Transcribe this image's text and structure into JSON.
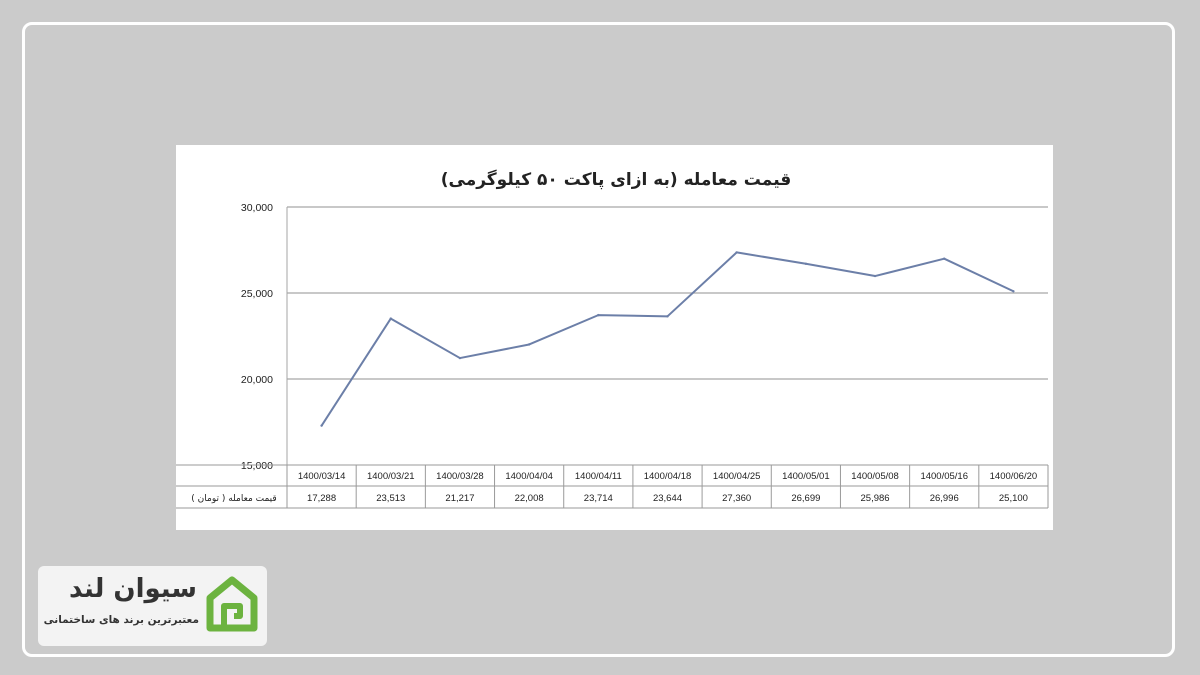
{
  "chart_data": {
    "type": "line",
    "title": "قیمت معامله (به ازای پاکت ۵۰ کیلوگرمی)",
    "row_label": "قیمت معامله ( تومان )",
    "categories": [
      "1400/03/14",
      "1400/03/21",
      "1400/03/28",
      "1400/04/04",
      "1400/04/11",
      "1400/04/18",
      "1400/04/25",
      "1400/05/01",
      "1400/05/08",
      "1400/05/16",
      "1400/06/20"
    ],
    "values": [
      17288,
      23513,
      21217,
      22008,
      23714,
      23644,
      27360,
      26699,
      25986,
      26996,
      25100
    ],
    "value_labels": [
      "17,288",
      "23,513",
      "21,217",
      "22,008",
      "23,714",
      "23,644",
      "27,360",
      "26,699",
      "25,986",
      "26,996",
      "25,100"
    ],
    "ylim": [
      15000,
      30000
    ],
    "yticks": [
      15000,
      20000,
      25000,
      30000
    ],
    "ytick_labels": [
      "15,000",
      "20,000",
      "25,000",
      "30,000"
    ],
    "grid": true,
    "line_color": "#6c7fa8",
    "legend": "data-table-below"
  },
  "brand": {
    "name": "سیوان لند",
    "tagline": "معتبرترین برند های ساختمانی",
    "icon": "house-logo-icon",
    "color": "#6cb33f"
  }
}
